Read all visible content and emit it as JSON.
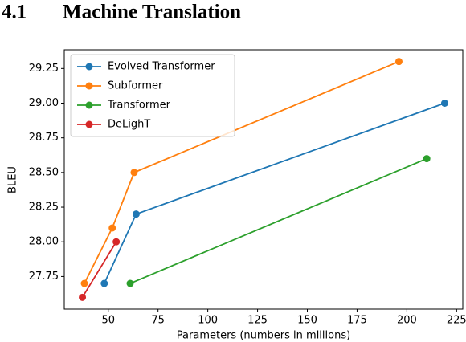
{
  "heading": {
    "number": "4.1",
    "title": "Machine Translation"
  },
  "chart_data": {
    "type": "line",
    "xlabel": "Parameters (numbers in millions)",
    "ylabel": "BLEU",
    "xlim": [
      27.9,
      228.1
    ],
    "ylim": [
      27.515,
      29.385
    ],
    "xticks": [
      50,
      75,
      100,
      125,
      150,
      175,
      200,
      225
    ],
    "yticks": [
      27.75,
      {
        "value": 28.0,
        "label": "28.00"
      },
      28.25,
      {
        "value": 28.5,
        "label": "28.50"
      },
      28.75,
      {
        "value": 29.0,
        "label": "29.00"
      },
      29.25
    ],
    "grid": false,
    "legend": "upper left",
    "series": [
      {
        "name": "Evolved Transformer",
        "color": "#1f77b4",
        "x": [
          48,
          64,
          219
        ],
        "values": [
          27.7,
          28.2,
          29.0
        ]
      },
      {
        "name": "Subformer",
        "color": "#ff7f0e",
        "x": [
          38,
          52,
          63,
          196
        ],
        "values": [
          27.7,
          28.1,
          28.5,
          29.3
        ]
      },
      {
        "name": "Transformer",
        "color": "#2ca02c",
        "x": [
          61,
          210
        ],
        "values": [
          27.7,
          28.6
        ]
      },
      {
        "name": "DeLighT",
        "color": "#d62728",
        "x": [
          37,
          54
        ],
        "values": [
          27.6,
          28.0
        ]
      }
    ]
  }
}
